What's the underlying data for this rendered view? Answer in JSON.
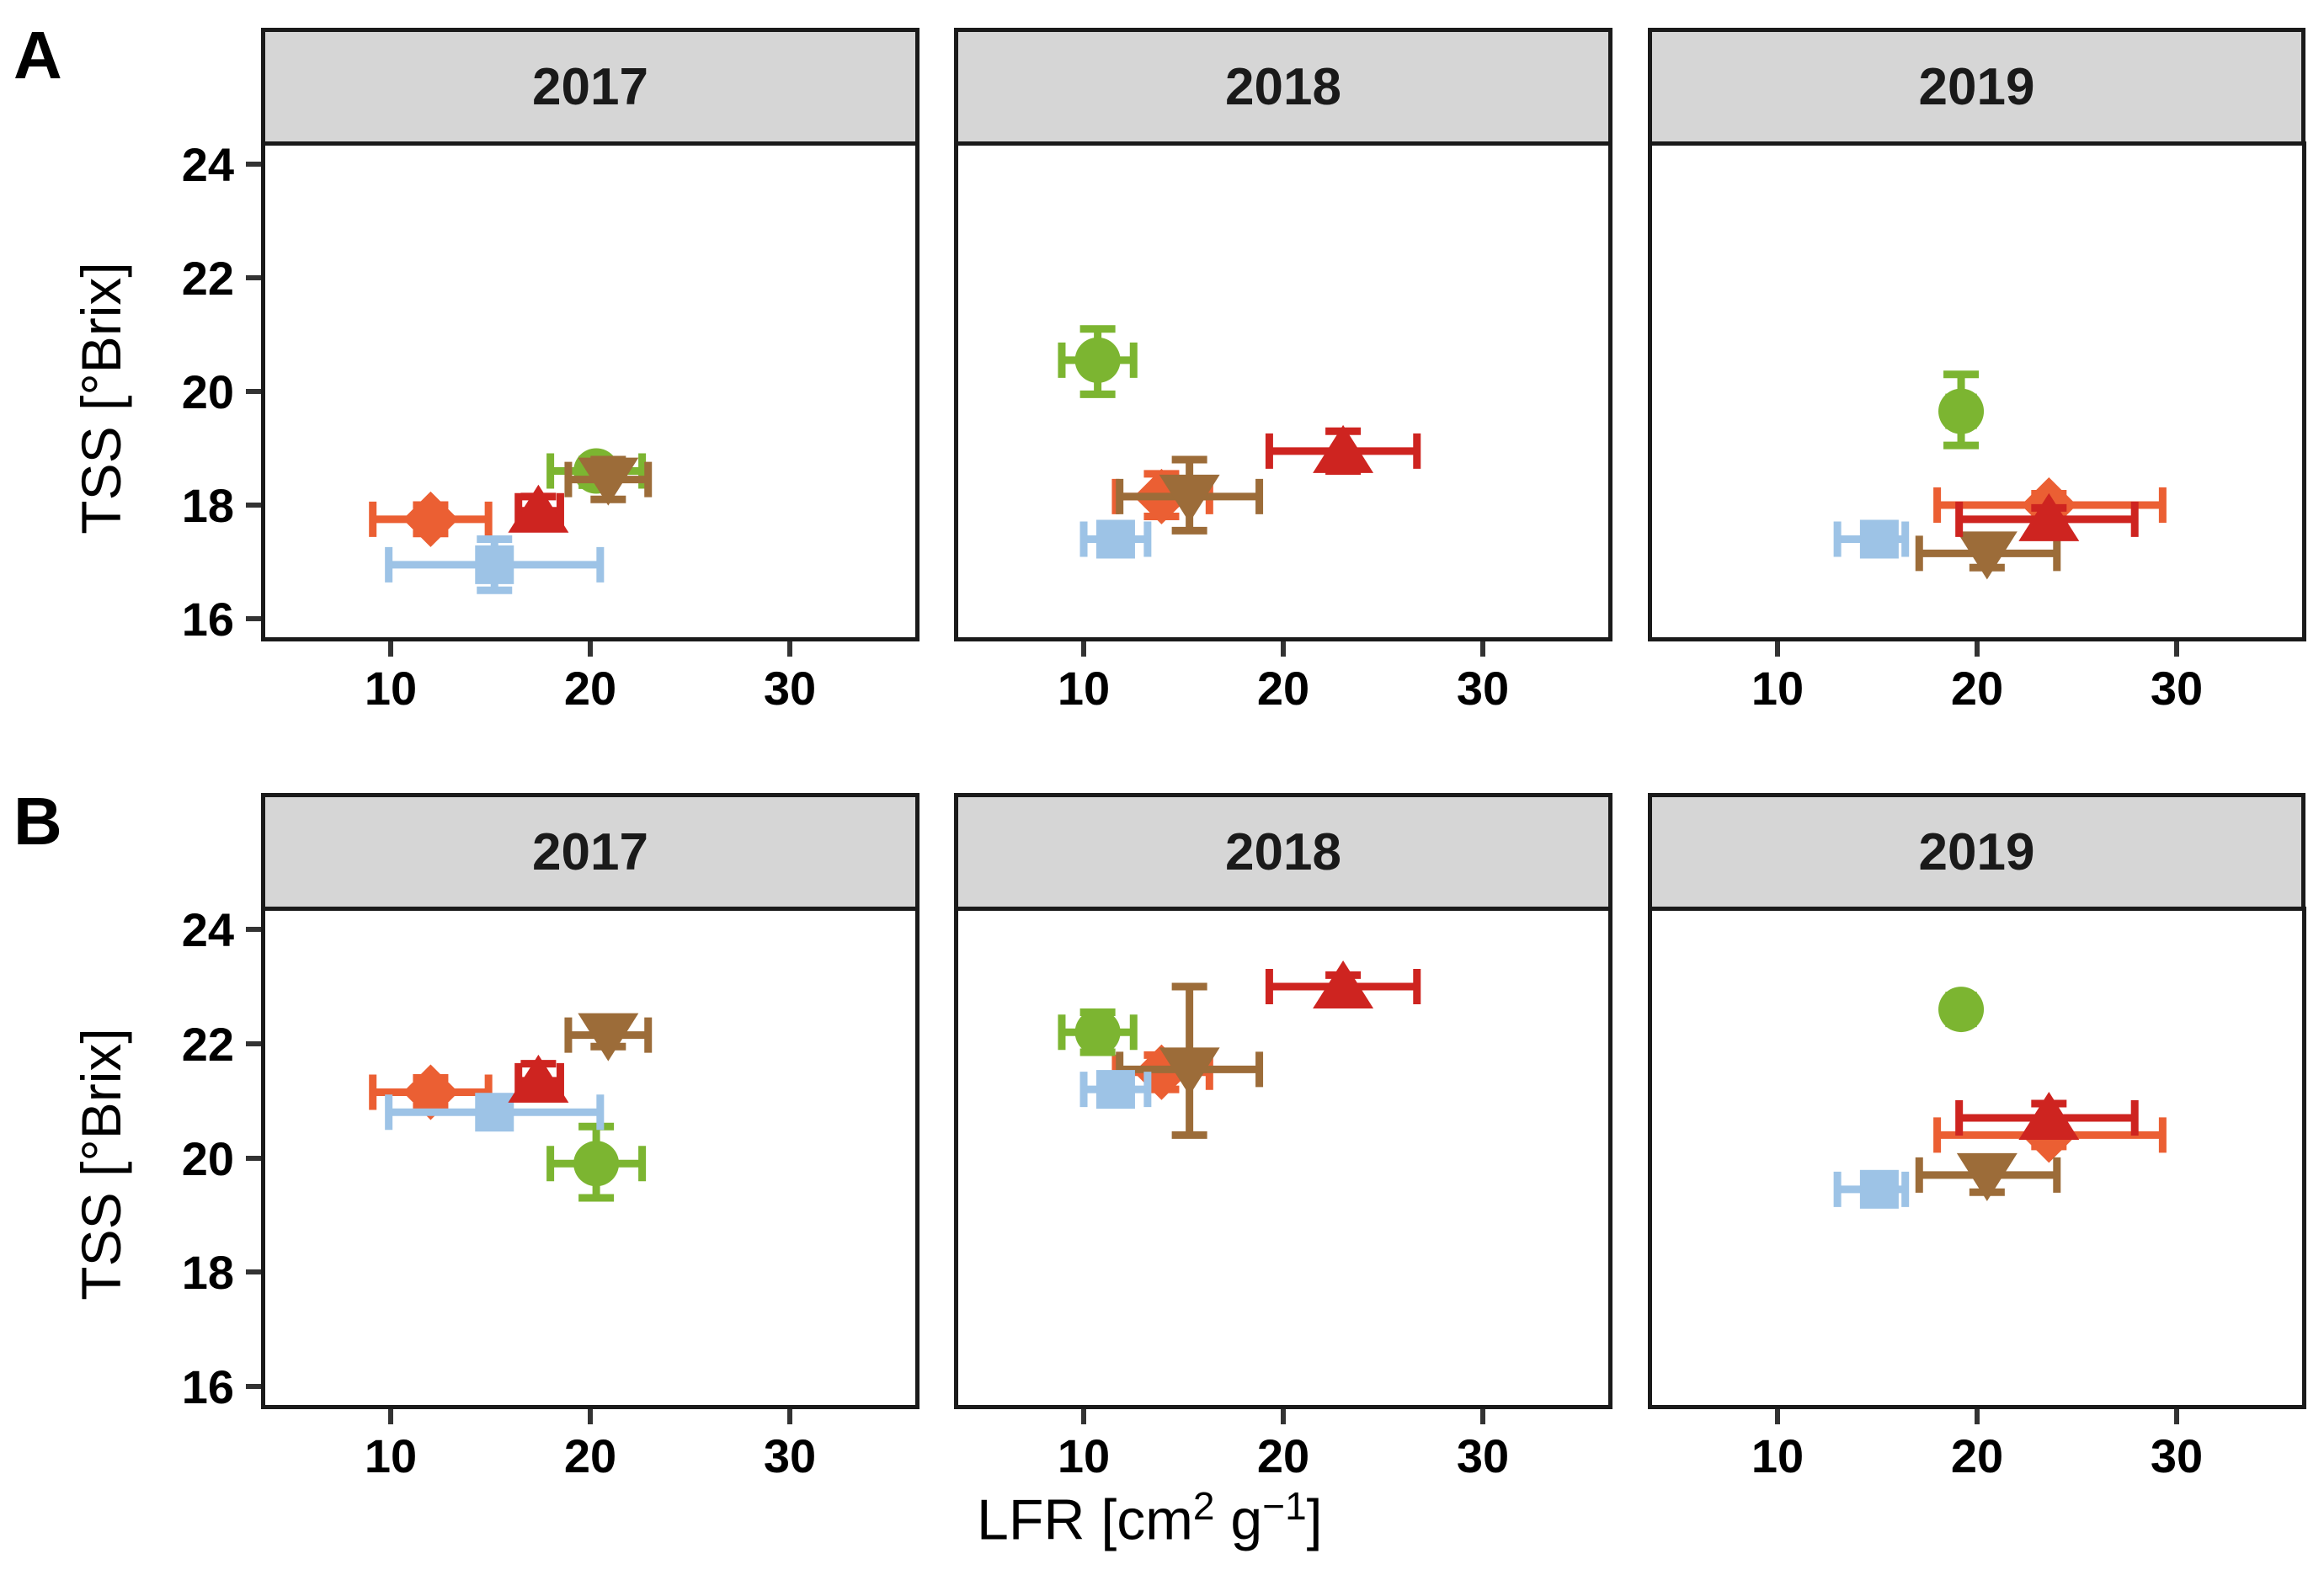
{
  "figure": {
    "panel_labels": [
      "A",
      "B"
    ],
    "y_axis_title": "TSS [°Brix]",
    "x_axis_title_parts": {
      "p1": "LFR [cm",
      "p2": "2",
      "p3": " g",
      "p4": "−1",
      "p5": "]"
    },
    "colors": {
      "strip_fill": "#D6D6D6",
      "panel_border": "#1a1a1a",
      "tick_mark": "#333333"
    }
  },
  "chart_data": {
    "type": "scatter",
    "title": "",
    "xlabel": "LFR [cm2 g-1]",
    "ylabel": "TSS [°Brix]",
    "facet_rows": [
      "A",
      "B"
    ],
    "facet_cols": [
      "2017",
      "2018",
      "2019"
    ],
    "xlim": [
      3.5,
      36.5
    ],
    "ylim": [
      15.6,
      24.4
    ],
    "x_ticks": [
      10,
      20,
      30
    ],
    "y_ticks": [
      16,
      18,
      20,
      22,
      24
    ],
    "grid": "off",
    "legend": "none",
    "series": [
      {
        "name": "orange-diamond",
        "marker": "diamond",
        "color": "#EB5F33",
        "points": [
          {
            "row": "A",
            "col": "2017",
            "x": 12.0,
            "y": 17.75,
            "xerr": [
              9.1,
              14.9
            ],
            "yerr": [
              17.5,
              18.0
            ]
          },
          {
            "row": "A",
            "col": "2018",
            "x": 13.9,
            "y": 18.15,
            "xerr": [
              11.6,
              16.3
            ],
            "yerr": [
              17.8,
              18.55
            ]
          },
          {
            "row": "A",
            "col": "2019",
            "x": 23.6,
            "y": 18.0,
            "xerr": [
              18.0,
              29.3
            ],
            "yerr": [
              17.8,
              18.2
            ]
          },
          {
            "row": "B",
            "col": "2017",
            "x": 12.0,
            "y": 21.15,
            "xerr": [
              9.1,
              14.9
            ],
            "yerr": [
              20.9,
              21.4
            ]
          },
          {
            "row": "B",
            "col": "2018",
            "x": 13.9,
            "y": 21.5,
            "xerr": [
              11.6,
              16.3
            ],
            "yerr": [
              21.2,
              21.8
            ]
          },
          {
            "row": "B",
            "col": "2019",
            "x": 23.6,
            "y": 20.4,
            "xerr": [
              18.0,
              29.3
            ],
            "yerr": [
              20.2,
              20.6
            ]
          }
        ]
      },
      {
        "name": "green-circle",
        "marker": "circle",
        "color": "#7CB531",
        "points": [
          {
            "row": "A",
            "col": "2017",
            "x": 20.3,
            "y": 18.6,
            "xerr": [
              18.0,
              22.6
            ],
            "yerr": [
              18.35,
              18.8
            ]
          },
          {
            "row": "A",
            "col": "2018",
            "x": 10.7,
            "y": 20.55,
            "xerr": [
              8.9,
              12.5
            ],
            "yerr": [
              19.95,
              21.1
            ]
          },
          {
            "row": "A",
            "col": "2019",
            "x": 19.2,
            "y": 19.65,
            "xerr": [
              18.6,
              19.8
            ],
            "yerr": [
              19.05,
              20.3
            ]
          },
          {
            "row": "B",
            "col": "2017",
            "x": 20.3,
            "y": 19.9,
            "xerr": [
              18.0,
              22.6
            ],
            "yerr": [
              19.3,
              20.55
            ]
          },
          {
            "row": "B",
            "col": "2018",
            "x": 10.7,
            "y": 22.2,
            "xerr": [
              8.9,
              12.5
            ],
            "yerr": [
              21.85,
              22.55
            ]
          },
          {
            "row": "B",
            "col": "2019",
            "x": 19.2,
            "y": 22.6,
            "xerr": [
              18.6,
              19.8
            ],
            "yerr": [
              22.45,
              22.75
            ]
          }
        ]
      },
      {
        "name": "brown-triangle-down",
        "marker": "triangle-down",
        "color": "#9C6C39",
        "points": [
          {
            "row": "A",
            "col": "2017",
            "x": 20.9,
            "y": 18.45,
            "xerr": [
              18.9,
              22.9
            ],
            "yerr": [
              18.1,
              18.8
            ]
          },
          {
            "row": "A",
            "col": "2018",
            "x": 15.3,
            "y": 18.15,
            "xerr": [
              11.8,
              18.8
            ],
            "yerr": [
              17.55,
              18.8
            ]
          },
          {
            "row": "A",
            "col": "2019",
            "x": 20.5,
            "y": 17.15,
            "xerr": [
              17.1,
              24.0
            ],
            "yerr": [
              16.9,
              17.45
            ]
          },
          {
            "row": "B",
            "col": "2017",
            "x": 20.9,
            "y": 22.15,
            "xerr": [
              18.9,
              22.9
            ],
            "yerr": [
              21.95,
              22.35
            ]
          },
          {
            "row": "B",
            "col": "2018",
            "x": 15.3,
            "y": 21.55,
            "xerr": [
              11.8,
              18.8
            ],
            "yerr": [
              20.4,
              23.0
            ]
          },
          {
            "row": "B",
            "col": "2019",
            "x": 20.5,
            "y": 19.7,
            "xerr": [
              17.1,
              24.0
            ],
            "yerr": [
              19.4,
              20.0
            ]
          }
        ]
      },
      {
        "name": "light-blue-square",
        "marker": "square",
        "color": "#9DC3E6",
        "points": [
          {
            "row": "A",
            "col": "2017",
            "x": 15.2,
            "y": 16.95,
            "xerr": [
              9.9,
              20.5
            ],
            "yerr": [
              16.5,
              17.4
            ]
          },
          {
            "row": "A",
            "col": "2018",
            "x": 11.6,
            "y": 17.4,
            "xerr": [
              10.0,
              13.2
            ],
            "yerr": [
              17.3,
              17.5
            ]
          },
          {
            "row": "A",
            "col": "2019",
            "x": 15.1,
            "y": 17.4,
            "xerr": [
              13.0,
              16.4
            ],
            "yerr": [
              17.3,
              17.5
            ]
          },
          {
            "row": "B",
            "col": "2017",
            "x": 15.2,
            "y": 20.8,
            "xerr": [
              9.9,
              20.5
            ],
            "yerr": [
              20.65,
              20.95
            ]
          },
          {
            "row": "B",
            "col": "2018",
            "x": 11.6,
            "y": 21.2,
            "xerr": [
              10.0,
              13.2
            ],
            "yerr": [
              21.1,
              21.3
            ]
          },
          {
            "row": "B",
            "col": "2019",
            "x": 15.1,
            "y": 19.45,
            "xerr": [
              13.0,
              16.4
            ],
            "yerr": [
              19.35,
              19.55
            ]
          }
        ]
      },
      {
        "name": "red-triangle-up",
        "marker": "triangle-up",
        "color": "#CE2420",
        "points": [
          {
            "row": "A",
            "col": "2017",
            "x": 17.4,
            "y": 17.9,
            "xerr": [
              16.4,
              18.5
            ],
            "yerr": [
              17.65,
              18.15
            ]
          },
          {
            "row": "A",
            "col": "2018",
            "x": 23.0,
            "y": 18.95,
            "xerr": [
              19.3,
              26.7
            ],
            "yerr": [
              18.6,
              19.3
            ]
          },
          {
            "row": "A",
            "col": "2019",
            "x": 23.6,
            "y": 17.75,
            "xerr": [
              19.1,
              27.9
            ],
            "yerr": [
              17.55,
              17.95
            ]
          },
          {
            "row": "B",
            "col": "2017",
            "x": 17.4,
            "y": 21.35,
            "xerr": [
              16.4,
              18.5
            ],
            "yerr": [
              21.05,
              21.65
            ]
          },
          {
            "row": "B",
            "col": "2018",
            "x": 23.0,
            "y": 23.0,
            "xerr": [
              19.3,
              26.7
            ],
            "yerr": [
              22.8,
              23.2
            ]
          },
          {
            "row": "B",
            "col": "2019",
            "x": 23.6,
            "y": 20.7,
            "xerr": [
              19.1,
              27.9
            ],
            "yerr": [
              20.45,
              20.95
            ]
          }
        ]
      }
    ]
  }
}
